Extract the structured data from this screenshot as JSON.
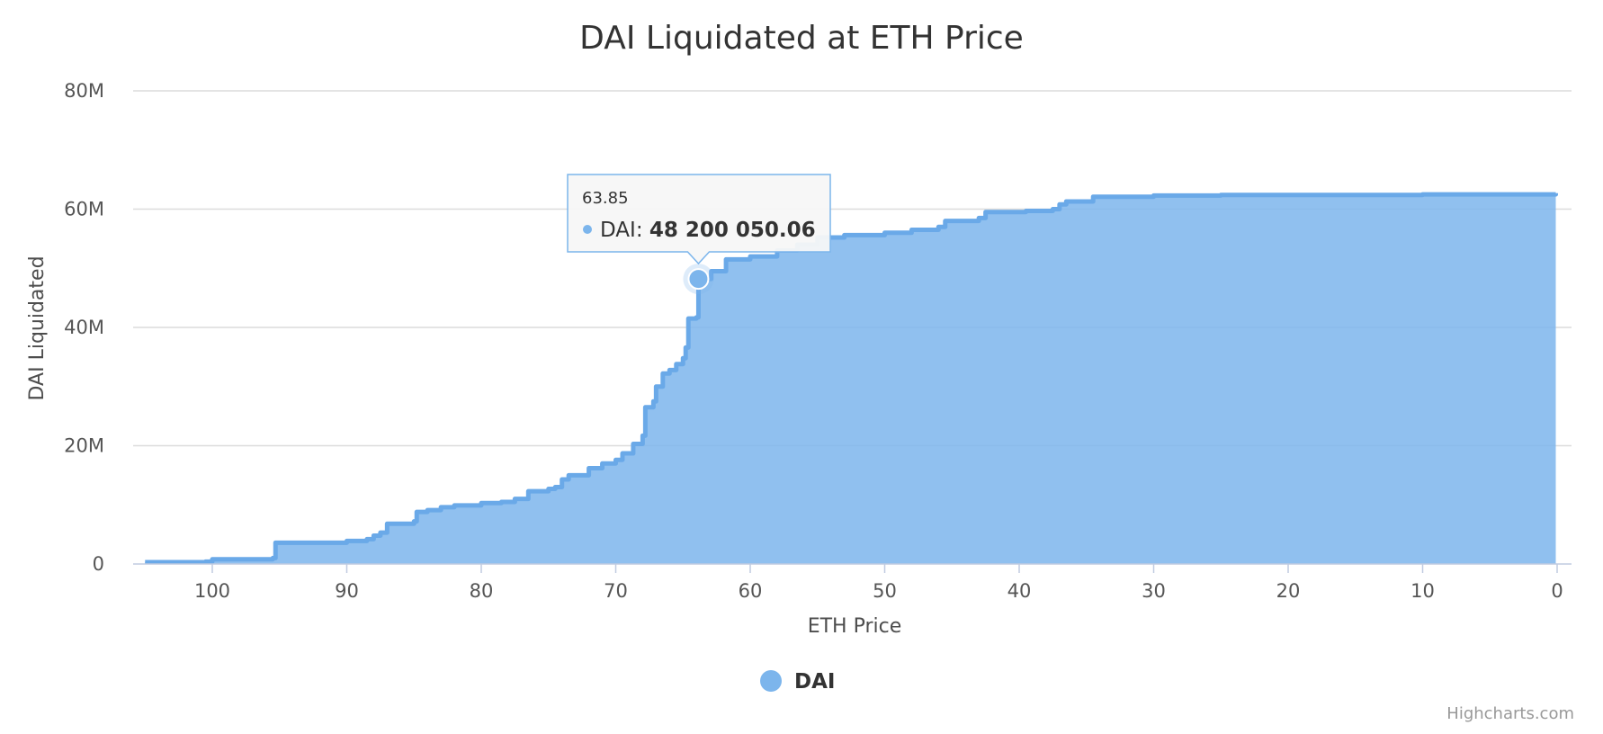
{
  "chart_data": {
    "type": "area",
    "title": "DAI Liquidated at ETH Price",
    "xlabel": "ETH Price",
    "ylabel": "DAI Liquidated",
    "xlim": [
      106,
      0
    ],
    "x_reversed": true,
    "ylim": [
      0,
      80000000
    ],
    "x_ticks": [
      100,
      90,
      80,
      70,
      60,
      50,
      40,
      30,
      20,
      10,
      0
    ],
    "x_tick_labels": [
      "100",
      "90",
      "80",
      "70",
      "60",
      "50",
      "40",
      "30",
      "20",
      "10",
      "0"
    ],
    "y_ticks": [
      0,
      20000000,
      40000000,
      60000000,
      80000000
    ],
    "y_tick_labels": [
      "0",
      "20M",
      "40M",
      "60M",
      "80M"
    ],
    "grid": true,
    "legend_position": "bottom-center",
    "step": "left",
    "series": [
      {
        "name": "DAI",
        "color": "#7cb5ec",
        "points": [
          [
            105,
            300000
          ],
          [
            100.5,
            400000
          ],
          [
            100,
            800000
          ],
          [
            95.5,
            1000000
          ],
          [
            95.3,
            3600000
          ],
          [
            90,
            3900000
          ],
          [
            88.5,
            4200000
          ],
          [
            88,
            4800000
          ],
          [
            87.5,
            5300000
          ],
          [
            87,
            6800000
          ],
          [
            85,
            7200000
          ],
          [
            84.8,
            8800000
          ],
          [
            84,
            9100000
          ],
          [
            83,
            9600000
          ],
          [
            82,
            9900000
          ],
          [
            80,
            10300000
          ],
          [
            78.5,
            10500000
          ],
          [
            77.5,
            11000000
          ],
          [
            76.5,
            12300000
          ],
          [
            75,
            12700000
          ],
          [
            74.5,
            13000000
          ],
          [
            74,
            14300000
          ],
          [
            73.5,
            15000000
          ],
          [
            72,
            16200000
          ],
          [
            71,
            17000000
          ],
          [
            70,
            17600000
          ],
          [
            69.5,
            18700000
          ],
          [
            68.7,
            20300000
          ],
          [
            68,
            21700000
          ],
          [
            67.8,
            26500000
          ],
          [
            67.2,
            27500000
          ],
          [
            67,
            30000000
          ],
          [
            66.5,
            32200000
          ],
          [
            66,
            32800000
          ],
          [
            65.5,
            33800000
          ],
          [
            65,
            34800000
          ],
          [
            64.8,
            36600000
          ],
          [
            64.6,
            41500000
          ],
          [
            64,
            41700000
          ],
          [
            63.85,
            48200050.06
          ],
          [
            62.9,
            49500000
          ],
          [
            61.8,
            51500000
          ],
          [
            60,
            52000000
          ],
          [
            58,
            53000000
          ],
          [
            56.5,
            54000000
          ],
          [
            55,
            55200000
          ],
          [
            53,
            55600000
          ],
          [
            50,
            56000000
          ],
          [
            48,
            56500000
          ],
          [
            46,
            57000000
          ],
          [
            45.5,
            58000000
          ],
          [
            43,
            58500000
          ],
          [
            42.5,
            59500000
          ],
          [
            39.5,
            59700000
          ],
          [
            37.5,
            60000000
          ],
          [
            37,
            60800000
          ],
          [
            36.5,
            61300000
          ],
          [
            34.5,
            62100000
          ],
          [
            30,
            62300000
          ],
          [
            25,
            62400000
          ],
          [
            10,
            62500000
          ],
          [
            0.1,
            62700000
          ]
        ]
      }
    ],
    "tooltip": {
      "x_label": "63.85",
      "series_name": "DAI",
      "value_label": "48 200 050.06",
      "x": 63.85,
      "y": 48200050.06
    }
  },
  "legend": {
    "items": [
      {
        "label": "DAI",
        "color": "#7cb5ec"
      }
    ]
  },
  "credits": "Highcharts.com"
}
